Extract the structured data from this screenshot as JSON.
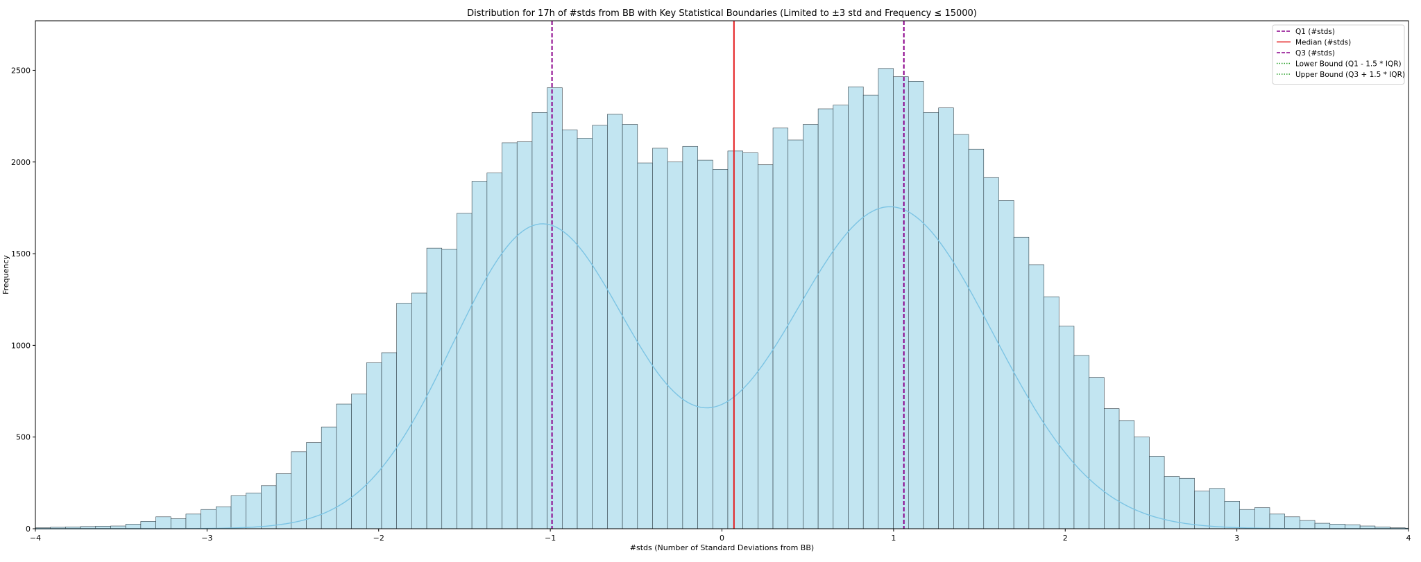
{
  "chart_data": {
    "type": "bar",
    "title": "Distribution for 17h of #stds from BB with Key Statistical Boundaries (Limited to ±3 std and Frequency ≤ 15000)",
    "xlabel": "#stds (Number of Standard Deviations from BB)",
    "ylabel": "Frequency",
    "xlim": [
      -4,
      4
    ],
    "ylim": [
      0,
      2770
    ],
    "x_ticks": [
      -4,
      -3,
      -2,
      -1,
      0,
      1,
      2,
      3,
      4
    ],
    "x_tick_labels": [
      "−4",
      "−3",
      "−2",
      "−1",
      "0",
      "1",
      "2",
      "3",
      "4"
    ],
    "y_ticks": [
      0,
      500,
      1000,
      1500,
      2000,
      2500
    ],
    "y_tick_labels": [
      "0",
      "500",
      "1000",
      "1500",
      "2000",
      "2500"
    ],
    "bin_start": -4.0,
    "bin_width": 0.0877,
    "values": [
      5,
      8,
      10,
      12,
      14,
      15,
      25,
      40,
      65,
      55,
      80,
      105,
      120,
      180,
      195,
      235,
      300,
      420,
      470,
      555,
      680,
      735,
      905,
      960,
      1230,
      1285,
      1530,
      1525,
      1720,
      1895,
      1940,
      2105,
      2110,
      2270,
      2405,
      2175,
      2130,
      2200,
      2260,
      2205,
      1995,
      2075,
      2000,
      2085,
      2010,
      1960,
      2060,
      2050,
      1985,
      2185,
      2120,
      2205,
      2290,
      2310,
      2410,
      2365,
      2510,
      2465,
      2440,
      2270,
      2295,
      2150,
      2070,
      1915,
      1790,
      1590,
      1440,
      1265,
      1105,
      945,
      825,
      655,
      590,
      500,
      395,
      285,
      275,
      205,
      220,
      150,
      105,
      115,
      80,
      65,
      45,
      30,
      25,
      22,
      15,
      10,
      5,
      3
    ],
    "kde": {
      "components": [
        {
          "weight": 0.45,
          "mean": -1.05,
          "sd": 0.52
        },
        {
          "weight": 0.55,
          "mean": 0.98,
          "sd": 0.6
        }
      ],
      "scale": 4800
    },
    "vlines": [
      {
        "name": "Q1 (#stds)",
        "x": -0.99,
        "color": "#8b008b",
        "style": "dashed"
      },
      {
        "name": "Median (#stds)",
        "x": 0.07,
        "color": "#e41a1c",
        "style": "solid"
      },
      {
        "name": "Q3 (#stds)",
        "x": 1.06,
        "color": "#8b008b",
        "style": "dashed"
      }
    ],
    "legend_position": "top-right",
    "legend": [
      {
        "label": "Q1 (#stds)",
        "color": "#8b008b",
        "style": "dashed"
      },
      {
        "label": "Median (#stds)",
        "color": "#e41a1c",
        "style": "solid"
      },
      {
        "label": "Q3 (#stds)",
        "color": "#8b008b",
        "style": "dashed"
      },
      {
        "label": "Lower Bound (Q1 - 1.5 * IQR)",
        "color": "#2ca02c",
        "style": "dotted"
      },
      {
        "label": "Upper Bound (Q3 + 1.5 * IQR)",
        "color": "#2ca02c",
        "style": "dotted"
      }
    ],
    "colors": {
      "bar_fill": "#c2e5f1",
      "bar_edge": "#2f3e46",
      "kde_line": "#7cc4e4"
    }
  }
}
